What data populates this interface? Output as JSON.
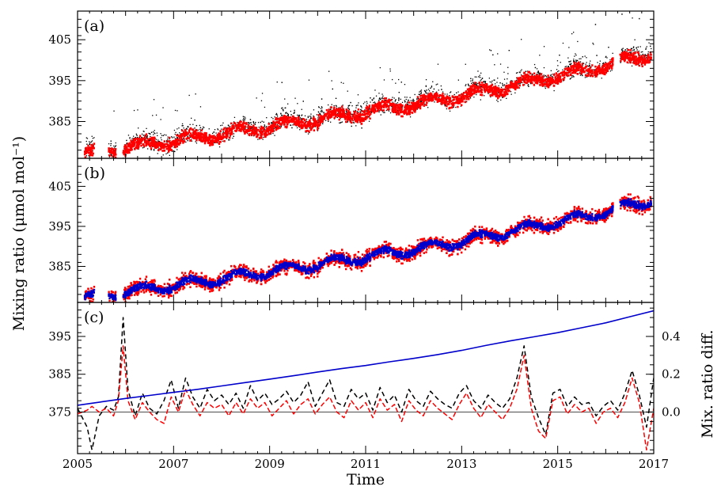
{
  "chart_data": {
    "type": "line",
    "xlabel": "Time",
    "ylabel": "Mixing ratio (μmol mol⁻¹)",
    "y2label": "Mix. ratio diff.",
    "xlim": [
      2005,
      2017
    ],
    "x_ticks": [
      "2005",
      "2007",
      "2009",
      "2011",
      "2013",
      "2015",
      "2017"
    ],
    "colors": {
      "black": "#000000",
      "red": "#ff0000",
      "blue": "#0000cc",
      "zero_line": "#666666"
    },
    "panels": [
      {
        "label": "(a)",
        "ylim": [
          376,
          412
        ],
        "y_ticks": [
          "385",
          "395",
          "405"
        ],
        "series": [
          {
            "id": "observed_black",
            "style": "dots",
            "color": "#000000",
            "spread": 2.0,
            "spike_prob": 0.06,
            "spike_max": 9
          },
          {
            "id": "observed_red",
            "style": "dense",
            "color": "#ff0000",
            "spread": 1.2
          }
        ],
        "note": "y values follow the common trend: about 377.5 in mid-2005 rising to about 402 at the end of 2016; gap in data around 2016.2-2016.3"
      },
      {
        "label": "(b)",
        "ylim": [
          376,
          412
        ],
        "y_ticks": [
          "385",
          "395",
          "405"
        ],
        "series": [
          {
            "id": "observed_red",
            "style": "dense",
            "color": "#ff0000",
            "spread": 1.6
          },
          {
            "id": "model_blue",
            "style": "dense",
            "color": "#0000cc",
            "spread": 0.7
          }
        ]
      },
      {
        "label": "(c)",
        "ylim": [
          364,
          404
        ],
        "y_ticks": [
          "375",
          "385",
          "395"
        ],
        "y2lim": [
          -0.22,
          0.58
        ],
        "y2_ticks": [
          "0.0",
          "0.2",
          "0.4"
        ],
        "zero_line_y2": 0.0,
        "trend_line": {
          "color": "#0000cc",
          "x": [
            2005.0,
            2005.5,
            2006.0,
            2006.5,
            2007.0,
            2007.5,
            2008.0,
            2008.5,
            2009.0,
            2009.5,
            2010.0,
            2010.5,
            2011.0,
            2011.5,
            2012.0,
            2012.5,
            2013.0,
            2013.5,
            2014.0,
            2014.5,
            2015.0,
            2015.5,
            2016.0,
            2016.5,
            2017.0
          ],
          "y": [
            376.8,
            377.7,
            378.6,
            379.4,
            380.2,
            381.0,
            381.9,
            382.8,
            383.7,
            384.6,
            385.6,
            386.5,
            387.3,
            388.3,
            389.2,
            390.2,
            391.3,
            392.6,
            393.8,
            394.9,
            396.0,
            397.3,
            398.6,
            400.2,
            401.8
          ]
        },
        "diff_series": [
          {
            "id": "diff_black",
            "color": "#000000",
            "dash": "6,4",
            "x": [
              2005.0,
              2005.2,
              2005.3,
              2005.45,
              2005.6,
              2005.75,
              2005.85,
              2005.95,
              2006.05,
              2006.2,
              2006.35,
              2006.5,
              2006.65,
              2006.8,
              2006.95,
              2007.1,
              2007.25,
              2007.4,
              2007.55,
              2007.7,
              2007.85,
              2008.0,
              2008.15,
              2008.3,
              2008.45,
              2008.6,
              2008.75,
              2008.9,
              2009.05,
              2009.2,
              2009.35,
              2009.5,
              2009.65,
              2009.8,
              2009.95,
              2010.1,
              2010.25,
              2010.4,
              2010.55,
              2010.7,
              2010.85,
              2011.0,
              2011.15,
              2011.3,
              2011.45,
              2011.6,
              2011.75,
              2011.9,
              2012.05,
              2012.2,
              2012.35,
              2012.5,
              2012.65,
              2012.8,
              2012.95,
              2013.1,
              2013.25,
              2013.4,
              2013.55,
              2013.7,
              2013.85,
              2014.0,
              2014.15,
              2014.3,
              2014.45,
              2014.6,
              2014.75,
              2014.9,
              2015.05,
              2015.2,
              2015.35,
              2015.5,
              2015.65,
              2015.8,
              2015.95,
              2016.1,
              2016.25,
              2016.4,
              2016.55,
              2016.7,
              2016.85,
              2017.0
            ],
            "y": [
              0.02,
              -0.08,
              -0.2,
              -0.02,
              0.03,
              0.01,
              0.08,
              0.5,
              0.12,
              -0.02,
              0.1,
              0.02,
              -0.01,
              0.06,
              0.17,
              0.02,
              0.18,
              0.08,
              0.02,
              0.12,
              0.06,
              0.09,
              0.04,
              0.1,
              0.02,
              0.14,
              0.06,
              0.1,
              0.04,
              0.07,
              0.11,
              0.05,
              0.09,
              0.16,
              0.03,
              0.1,
              0.17,
              0.05,
              0.03,
              0.12,
              0.07,
              0.1,
              0.01,
              0.13,
              0.05,
              0.09,
              0.0,
              0.12,
              0.06,
              0.03,
              0.11,
              0.07,
              0.04,
              0.02,
              0.1,
              0.14,
              0.06,
              0.02,
              0.09,
              0.05,
              0.02,
              0.07,
              0.18,
              0.35,
              0.08,
              -0.03,
              -0.12,
              0.1,
              0.12,
              0.03,
              0.08,
              0.04,
              0.05,
              -0.02,
              0.03,
              0.06,
              0.01,
              0.1,
              0.22,
              0.09,
              -0.08,
              0.18
            ]
          },
          {
            "id": "diff_red",
            "color": "#ff0000",
            "dash": "6,3",
            "x": [
              2005.0,
              2005.2,
              2005.3,
              2005.45,
              2005.6,
              2005.75,
              2005.85,
              2005.95,
              2006.05,
              2006.2,
              2006.35,
              2006.5,
              2006.65,
              2006.8,
              2006.95,
              2007.1,
              2007.25,
              2007.4,
              2007.55,
              2007.7,
              2007.85,
              2008.0,
              2008.15,
              2008.3,
              2008.45,
              2008.6,
              2008.75,
              2008.9,
              2009.05,
              2009.2,
              2009.35,
              2009.5,
              2009.65,
              2009.8,
              2009.95,
              2010.1,
              2010.25,
              2010.4,
              2010.55,
              2010.7,
              2010.85,
              2011.0,
              2011.15,
              2011.3,
              2011.45,
              2011.6,
              2011.75,
              2011.9,
              2012.05,
              2012.2,
              2012.35,
              2012.5,
              2012.65,
              2012.8,
              2012.95,
              2013.1,
              2013.25,
              2013.4,
              2013.55,
              2013.7,
              2013.85,
              2014.0,
              2014.15,
              2014.3,
              2014.45,
              2014.6,
              2014.75,
              2014.9,
              2015.05,
              2015.2,
              2015.35,
              2015.5,
              2015.65,
              2015.8,
              2015.95,
              2016.1,
              2016.25,
              2016.4,
              2016.55,
              2016.7,
              2016.85,
              2017.0
            ],
            "y": [
              -0.01,
              0.01,
              0.03,
              0.0,
              0.02,
              -0.02,
              0.06,
              0.35,
              0.06,
              -0.04,
              0.05,
              0.0,
              -0.04,
              -0.06,
              0.08,
              0.0,
              0.12,
              0.04,
              -0.02,
              0.05,
              0.02,
              0.04,
              -0.02,
              0.05,
              -0.01,
              0.07,
              0.02,
              0.05,
              -0.02,
              0.02,
              0.06,
              -0.01,
              0.04,
              0.07,
              -0.01,
              0.04,
              0.08,
              0.0,
              -0.03,
              0.06,
              0.01,
              0.05,
              -0.03,
              0.07,
              0.01,
              0.04,
              -0.05,
              0.06,
              0.01,
              -0.02,
              0.06,
              0.02,
              -0.01,
              -0.04,
              0.04,
              0.1,
              0.02,
              -0.03,
              0.04,
              0.0,
              -0.04,
              0.02,
              0.12,
              0.3,
              0.02,
              -0.1,
              -0.14,
              0.06,
              0.08,
              -0.01,
              0.04,
              0.0,
              0.02,
              -0.06,
              0.0,
              0.02,
              -0.03,
              0.05,
              0.18,
              0.05,
              -0.2,
              0.02
            ]
          }
        ]
      }
    ]
  }
}
